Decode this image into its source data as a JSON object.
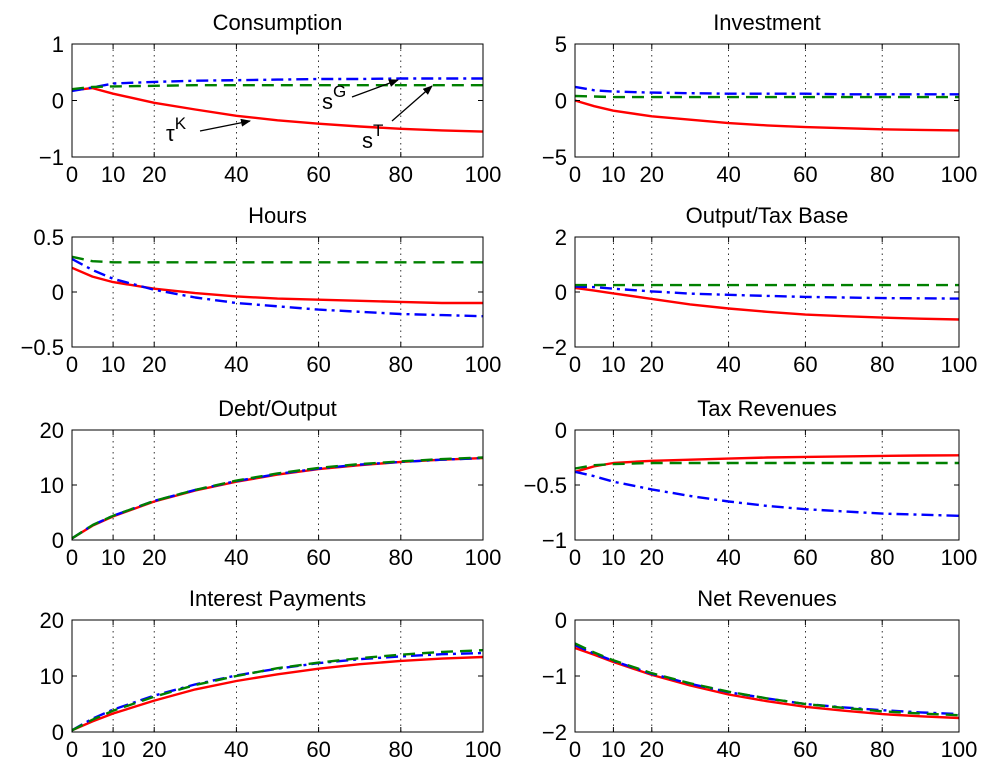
{
  "colors": {
    "tauK": "#ff0000",
    "sG": "#0000ff",
    "sT": "#008000",
    "axis": "#000000",
    "grid": "#000000"
  },
  "annotations": {
    "tauK_base": "τ",
    "tauK_sup": "K",
    "sG_base": "s",
    "sG_sup": "G",
    "sT_base": "s",
    "sT_sup": "T"
  },
  "chart_data": [
    {
      "type": "line",
      "title": "Consumption",
      "xlim": [
        0,
        100
      ],
      "ylim": [
        -1,
        1
      ],
      "xticks": [
        0,
        10,
        20,
        40,
        60,
        80,
        100
      ],
      "xtick_labels": [
        "0",
        "10",
        "20",
        "40",
        "60",
        "80",
        "100"
      ],
      "yticks": [
        -1,
        0,
        1
      ],
      "ytick_labels": [
        "−1",
        "0",
        "1"
      ],
      "grid": "vertical-dotted",
      "x": [
        0,
        5,
        10,
        20,
        30,
        40,
        50,
        60,
        70,
        80,
        90,
        100
      ],
      "series": [
        {
          "key": "tauK",
          "style": "solid",
          "values": [
            0.18,
            0.22,
            0.12,
            -0.04,
            -0.16,
            -0.27,
            -0.35,
            -0.41,
            -0.46,
            -0.5,
            -0.53,
            -0.55
          ]
        },
        {
          "key": "sG",
          "style": "dashdot",
          "values": [
            0.17,
            0.23,
            0.3,
            0.33,
            0.35,
            0.36,
            0.37,
            0.38,
            0.38,
            0.39,
            0.39,
            0.39
          ]
        },
        {
          "key": "sT",
          "style": "dashed",
          "values": [
            0.2,
            0.24,
            0.25,
            0.26,
            0.27,
            0.27,
            0.27,
            0.27,
            0.27,
            0.27,
            0.27,
            0.27
          ]
        }
      ]
    },
    {
      "type": "line",
      "title": "Investment",
      "xlim": [
        0,
        100
      ],
      "ylim": [
        -5,
        5
      ],
      "xticks": [
        0,
        10,
        20,
        40,
        60,
        80,
        100
      ],
      "xtick_labels": [
        "0",
        "10",
        "20",
        "40",
        "60",
        "80",
        "100"
      ],
      "yticks": [
        -5,
        0,
        5
      ],
      "ytick_labels": [
        "−5",
        "0",
        "5"
      ],
      "grid": "vertical-dotted",
      "x": [
        0,
        5,
        10,
        20,
        30,
        40,
        50,
        60,
        70,
        80,
        90,
        100
      ],
      "series": [
        {
          "key": "tauK",
          "style": "solid",
          "values": [
            0.0,
            -0.5,
            -0.9,
            -1.4,
            -1.7,
            -2.0,
            -2.2,
            -2.35,
            -2.45,
            -2.55,
            -2.6,
            -2.65
          ]
        },
        {
          "key": "sG",
          "style": "dashdot",
          "values": [
            1.2,
            0.9,
            0.8,
            0.7,
            0.65,
            0.6,
            0.6,
            0.6,
            0.55,
            0.55,
            0.55,
            0.55
          ]
        },
        {
          "key": "sT",
          "style": "dashed",
          "values": [
            0.4,
            0.35,
            0.3,
            0.3,
            0.3,
            0.3,
            0.3,
            0.3,
            0.3,
            0.3,
            0.3,
            0.3
          ]
        }
      ]
    },
    {
      "type": "line",
      "title": "Hours",
      "xlim": [
        0,
        100
      ],
      "ylim": [
        -0.5,
        0.5
      ],
      "xticks": [
        0,
        10,
        20,
        40,
        60,
        80,
        100
      ],
      "xtick_labels": [
        "0",
        "10",
        "20",
        "40",
        "60",
        "80",
        "100"
      ],
      "yticks": [
        -0.5,
        0,
        0.5
      ],
      "ytick_labels": [
        "−0.5",
        "0",
        "0.5"
      ],
      "grid": "vertical-dotted",
      "x": [
        0,
        5,
        10,
        20,
        30,
        40,
        50,
        60,
        70,
        80,
        90,
        100
      ],
      "series": [
        {
          "key": "tauK",
          "style": "solid",
          "values": [
            0.22,
            0.14,
            0.09,
            0.03,
            -0.01,
            -0.04,
            -0.06,
            -0.07,
            -0.08,
            -0.09,
            -0.1,
            -0.1
          ]
        },
        {
          "key": "sG",
          "style": "dashdot",
          "values": [
            0.3,
            0.2,
            0.12,
            0.02,
            -0.05,
            -0.1,
            -0.13,
            -0.16,
            -0.18,
            -0.2,
            -0.21,
            -0.22
          ]
        },
        {
          "key": "sT",
          "style": "dashed",
          "values": [
            0.32,
            0.28,
            0.27,
            0.27,
            0.27,
            0.27,
            0.27,
            0.27,
            0.27,
            0.27,
            0.27,
            0.27
          ]
        }
      ]
    },
    {
      "type": "line",
      "title": "Output/Tax Base",
      "xlim": [
        0,
        100
      ],
      "ylim": [
        -2,
        2
      ],
      "xticks": [
        0,
        10,
        20,
        40,
        60,
        80,
        100
      ],
      "xtick_labels": [
        "0",
        "10",
        "20",
        "40",
        "60",
        "80",
        "100"
      ],
      "yticks": [
        -2,
        0,
        2
      ],
      "ytick_labels": [
        "−2",
        "0",
        "2"
      ],
      "grid": "vertical-dotted",
      "x": [
        0,
        5,
        10,
        20,
        30,
        40,
        50,
        60,
        70,
        80,
        90,
        100
      ],
      "series": [
        {
          "key": "tauK",
          "style": "solid",
          "values": [
            0.15,
            0.05,
            -0.05,
            -0.25,
            -0.45,
            -0.6,
            -0.72,
            -0.82,
            -0.88,
            -0.93,
            -0.97,
            -1.0
          ]
        },
        {
          "key": "sG",
          "style": "dashdot",
          "values": [
            0.2,
            0.18,
            0.12,
            0.02,
            -0.06,
            -0.1,
            -0.14,
            -0.18,
            -0.2,
            -0.22,
            -0.23,
            -0.24
          ]
        },
        {
          "key": "sT",
          "style": "dashed",
          "values": [
            0.25,
            0.25,
            0.25,
            0.25,
            0.25,
            0.25,
            0.25,
            0.25,
            0.25,
            0.25,
            0.25,
            0.25
          ]
        }
      ]
    },
    {
      "type": "line",
      "title": "Debt/Output",
      "xlim": [
        0,
        100
      ],
      "ylim": [
        0,
        20
      ],
      "xticks": [
        0,
        10,
        20,
        40,
        60,
        80,
        100
      ],
      "xtick_labels": [
        "0",
        "10",
        "20",
        "40",
        "60",
        "80",
        "100"
      ],
      "yticks": [
        0,
        10,
        20
      ],
      "ytick_labels": [
        "0",
        "10",
        "20"
      ],
      "grid": "vertical-dotted",
      "x": [
        0,
        5,
        10,
        20,
        30,
        40,
        50,
        60,
        70,
        80,
        90,
        100
      ],
      "series": [
        {
          "key": "tauK",
          "style": "solid",
          "values": [
            0.3,
            2.6,
            4.3,
            7.0,
            9.0,
            10.6,
            11.9,
            12.9,
            13.6,
            14.2,
            14.6,
            14.9
          ]
        },
        {
          "key": "sG",
          "style": "dashdot",
          "values": [
            0.3,
            2.7,
            4.4,
            7.1,
            9.1,
            10.7,
            12.0,
            13.0,
            13.7,
            14.2,
            14.6,
            14.9
          ]
        },
        {
          "key": "sT",
          "style": "dashed",
          "values": [
            0.3,
            2.7,
            4.4,
            7.1,
            9.1,
            10.8,
            12.1,
            13.1,
            13.8,
            14.3,
            14.7,
            15.0
          ]
        }
      ]
    },
    {
      "type": "line",
      "title": "Tax Revenues",
      "xlim": [
        0,
        100
      ],
      "ylim": [
        -1,
        0
      ],
      "xticks": [
        0,
        10,
        20,
        40,
        60,
        80,
        100
      ],
      "xtick_labels": [
        "0",
        "10",
        "20",
        "40",
        "60",
        "80",
        "100"
      ],
      "yticks": [
        -1,
        -0.5,
        0
      ],
      "ytick_labels": [
        "−1",
        "−0.5",
        "0"
      ],
      "grid": "vertical-dotted",
      "x": [
        0,
        5,
        10,
        20,
        30,
        40,
        50,
        60,
        70,
        80,
        90,
        100
      ],
      "series": [
        {
          "key": "tauK",
          "style": "solid",
          "values": [
            -0.38,
            -0.33,
            -0.3,
            -0.28,
            -0.27,
            -0.26,
            -0.25,
            -0.245,
            -0.24,
            -0.235,
            -0.232,
            -0.23
          ]
        },
        {
          "key": "sG",
          "style": "dashdot",
          "values": [
            -0.38,
            -0.42,
            -0.47,
            -0.54,
            -0.6,
            -0.65,
            -0.69,
            -0.72,
            -0.74,
            -0.76,
            -0.77,
            -0.78
          ]
        },
        {
          "key": "sT",
          "style": "dashed",
          "values": [
            -0.35,
            -0.32,
            -0.31,
            -0.3,
            -0.3,
            -0.3,
            -0.3,
            -0.3,
            -0.3,
            -0.3,
            -0.3,
            -0.3
          ]
        }
      ]
    },
    {
      "type": "line",
      "title": "Interest Payments",
      "xlim": [
        0,
        100
      ],
      "ylim": [
        0,
        20
      ],
      "xticks": [
        0,
        10,
        20,
        40,
        60,
        80,
        100
      ],
      "xtick_labels": [
        "0",
        "10",
        "20",
        "40",
        "60",
        "80",
        "100"
      ],
      "yticks": [
        0,
        10,
        20
      ],
      "ytick_labels": [
        "0",
        "10",
        "20"
      ],
      "grid": "vertical-dotted",
      "x": [
        0,
        5,
        10,
        20,
        30,
        40,
        50,
        60,
        70,
        80,
        90,
        100
      ],
      "series": [
        {
          "key": "tauK",
          "style": "solid",
          "values": [
            0.3,
            1.9,
            3.3,
            5.6,
            7.6,
            9.1,
            10.3,
            11.3,
            12.1,
            12.7,
            13.1,
            13.4
          ]
        },
        {
          "key": "sG",
          "style": "dashdot",
          "values": [
            0.3,
            2.4,
            4.0,
            6.5,
            8.5,
            10.1,
            11.3,
            12.3,
            13.0,
            13.5,
            13.9,
            14.1
          ]
        },
        {
          "key": "sT",
          "style": "dashed",
          "values": [
            0.3,
            2.2,
            3.8,
            6.3,
            8.4,
            10.0,
            11.4,
            12.4,
            13.2,
            13.8,
            14.3,
            14.6
          ]
        }
      ]
    },
    {
      "type": "line",
      "title": "Net Revenues",
      "xlim": [
        0,
        100
      ],
      "ylim": [
        -2,
        0
      ],
      "xticks": [
        0,
        10,
        20,
        40,
        60,
        80,
        100
      ],
      "xtick_labels": [
        "0",
        "10",
        "20",
        "40",
        "60",
        "80",
        "100"
      ],
      "yticks": [
        -2,
        -1,
        0
      ],
      "ytick_labels": [
        "−2",
        "−1",
        "0"
      ],
      "grid": "vertical-dotted",
      "x": [
        0,
        5,
        10,
        20,
        30,
        40,
        50,
        60,
        70,
        80,
        90,
        100
      ],
      "series": [
        {
          "key": "tauK",
          "style": "solid",
          "values": [
            -0.5,
            -0.62,
            -0.75,
            -0.98,
            -1.17,
            -1.33,
            -1.45,
            -1.55,
            -1.62,
            -1.68,
            -1.72,
            -1.75
          ]
        },
        {
          "key": "sG",
          "style": "dashdot",
          "values": [
            -0.45,
            -0.6,
            -0.73,
            -0.96,
            -1.14,
            -1.29,
            -1.4,
            -1.5,
            -1.56,
            -1.61,
            -1.65,
            -1.68
          ]
        },
        {
          "key": "sT",
          "style": "dashed",
          "values": [
            -0.42,
            -0.58,
            -0.72,
            -0.95,
            -1.13,
            -1.28,
            -1.4,
            -1.5,
            -1.57,
            -1.63,
            -1.67,
            -1.7
          ]
        }
      ]
    }
  ]
}
